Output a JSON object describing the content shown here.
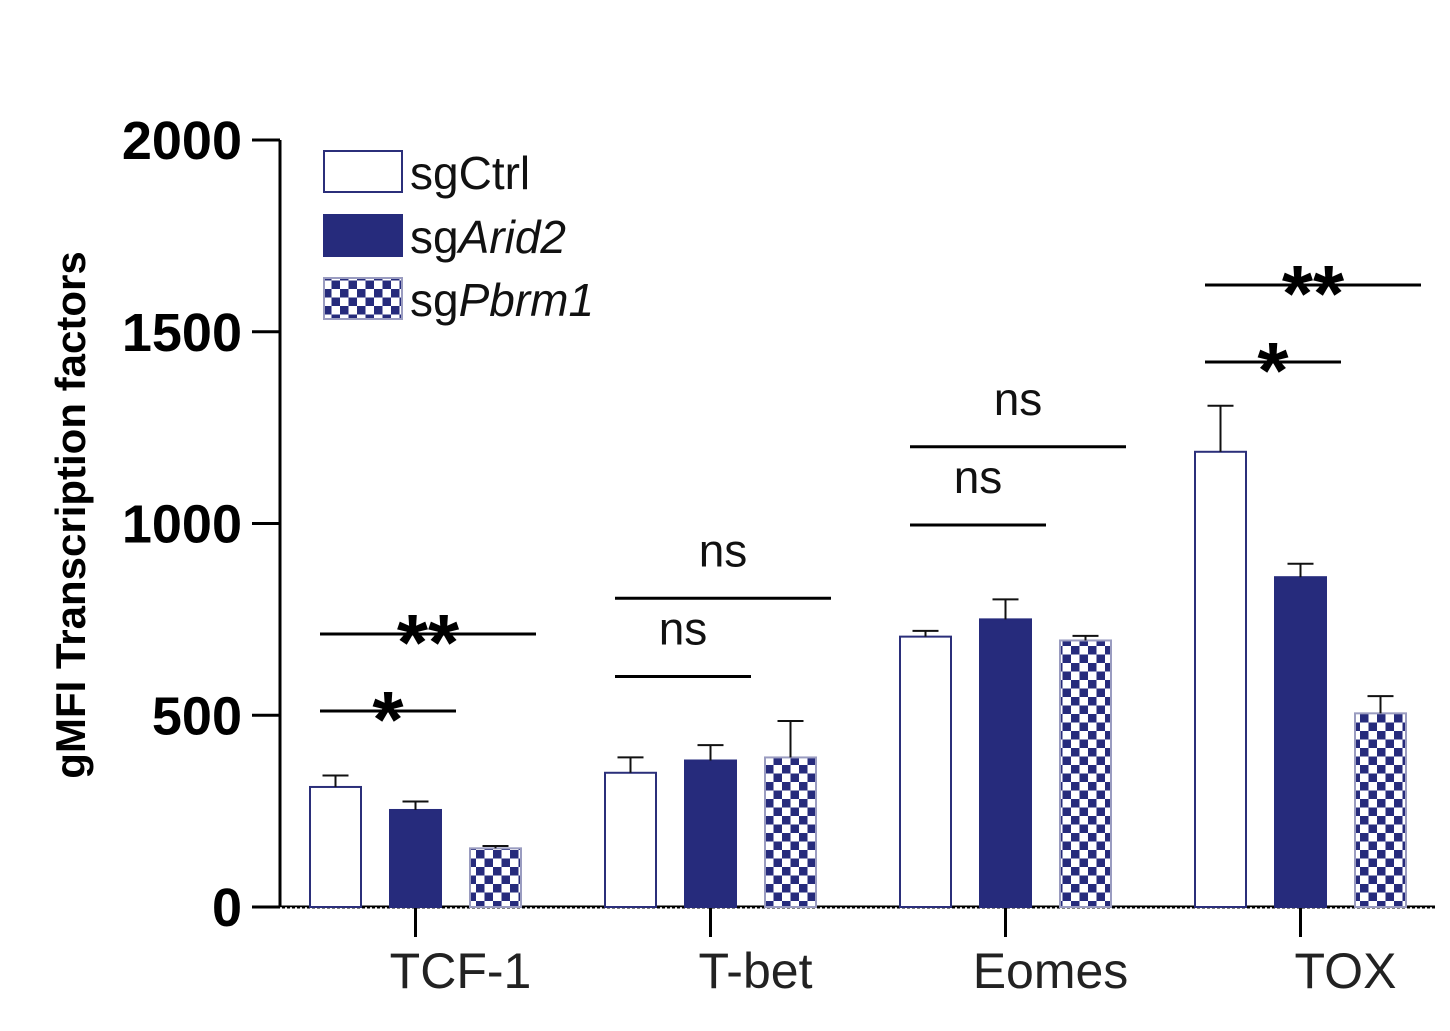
{
  "chart_data": {
    "type": "bar",
    "title": "",
    "xlabel": "",
    "ylabel": "gMFI Transcription factors",
    "ylim": [
      0,
      2000
    ],
    "yticks": [
      0,
      500,
      1000,
      1500,
      2000
    ],
    "categories": [
      "TCF-1",
      "T-bet",
      "Eomes",
      "TOX"
    ],
    "legend_position": "top-left",
    "series": [
      {
        "name_prefix": "sg",
        "name_italic": "",
        "name_suffix": "Ctrl",
        "style": "open",
        "color": "#2b2f7a",
        "values": [
          313,
          350,
          705,
          1187
        ],
        "errors": [
          30,
          40,
          15,
          120
        ]
      },
      {
        "name_prefix": "sg",
        "name_italic": "Arid2",
        "name_suffix": "",
        "style": "filled",
        "color": "#262b7c",
        "values": [
          253,
          382,
          750,
          860
        ],
        "errors": [
          22,
          40,
          52,
          35
        ]
      },
      {
        "name_prefix": "sg",
        "name_italic": "Pbrm1",
        "name_suffix": "",
        "style": "checkered",
        "color": "#262b7c",
        "values": [
          153,
          390,
          695,
          505
        ],
        "errors": [
          6,
          95,
          12,
          45
        ]
      }
    ],
    "significance": [
      {
        "category": "TCF-1",
        "series_from": 0,
        "series_to": 1,
        "label": "*",
        "level": 511
      },
      {
        "category": "TCF-1",
        "series_from": 0,
        "series_to": 2,
        "label": "**",
        "level": 712
      },
      {
        "category": "T-bet",
        "series_from": 0,
        "series_to": 1,
        "label": "ns",
        "level": 601
      },
      {
        "category": "T-bet",
        "series_from": 0,
        "series_to": 2,
        "label": "ns",
        "level": 805
      },
      {
        "category": "Eomes",
        "series_from": 0,
        "series_to": 1,
        "label": "ns",
        "level": 996
      },
      {
        "category": "Eomes",
        "series_from": 0,
        "series_to": 2,
        "label": "ns",
        "level": 1200
      },
      {
        "category": "TOX",
        "series_from": 0,
        "series_to": 1,
        "label": "*",
        "level": 1421
      },
      {
        "category": "TOX",
        "series_from": 0,
        "series_to": 2,
        "label": "**",
        "level": 1622
      }
    ]
  }
}
